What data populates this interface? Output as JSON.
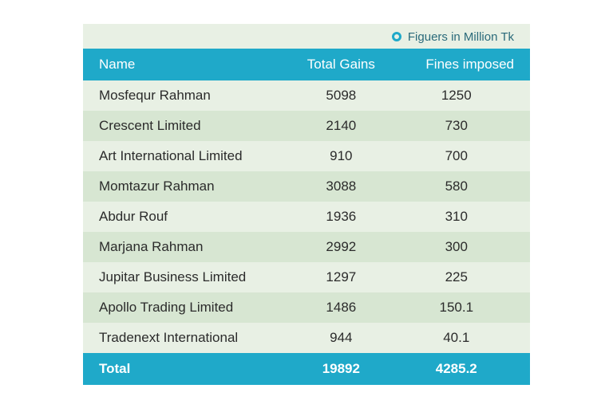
{
  "caption": "Figuers in Million Tk",
  "columns": [
    "Name",
    "Total Gains",
    "Fines imposed"
  ],
  "rows": [
    {
      "name": "Mosfequr Rahman",
      "gains": "5098",
      "fines": "1250"
    },
    {
      "name": "Crescent Limited",
      "gains": "2140",
      "fines": "730"
    },
    {
      "name": "Art International Limited",
      "gains": "910",
      "fines": "700"
    },
    {
      "name": "Momtazur Rahman",
      "gains": "3088",
      "fines": "580"
    },
    {
      "name": "Abdur Rouf",
      "gains": "1936",
      "fines": "310"
    },
    {
      "name": "Marjana Rahman",
      "gains": "2992",
      "fines": "300"
    },
    {
      "name": "Jupitar Business Limited",
      "gains": "1297",
      "fines": "225"
    },
    {
      "name": "Apollo Trading Limited",
      "gains": "1486",
      "fines": "150.1"
    },
    {
      "name": "Tradenext International",
      "gains": "944",
      "fines": "40.1"
    }
  ],
  "total": {
    "label": "Total",
    "gains": "19892",
    "fines": "4285.2"
  },
  "colors": {
    "header_bg": "#1fa9c9",
    "header_fg": "#ffffff",
    "row_odd": "#e8f0e4",
    "row_even": "#d7e6d2",
    "caption_fg": "#2a6a7a",
    "text": "#2b2b2b"
  }
}
